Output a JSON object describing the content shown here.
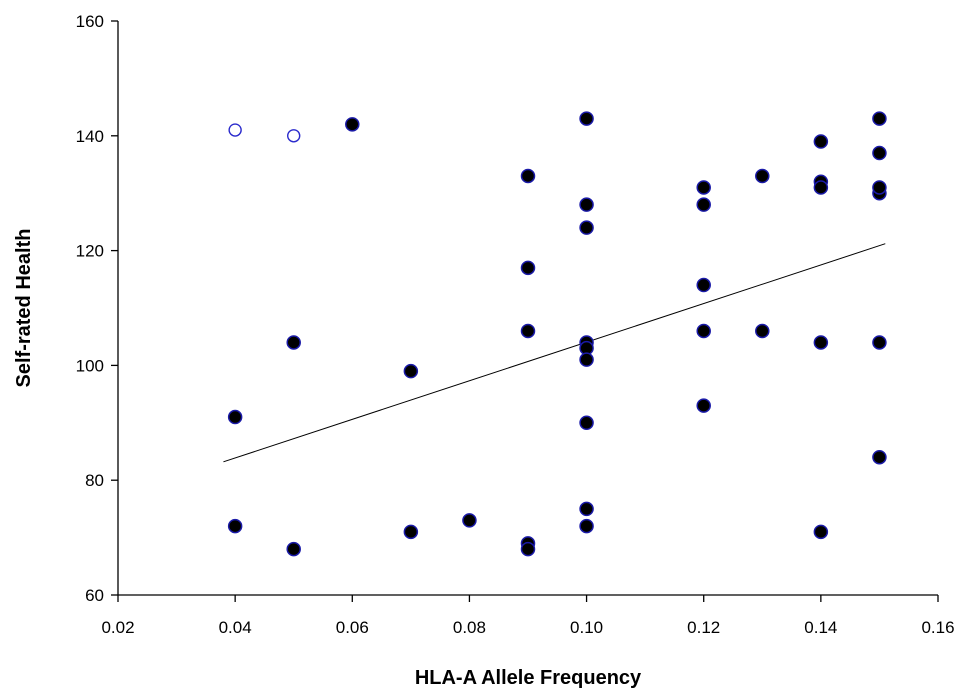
{
  "chart_data": {
    "type": "scatter",
    "xlabel": "HLA-A Allele Frequency",
    "ylabel": "Self-rated Health",
    "xlim": [
      0.02,
      0.16
    ],
    "ylim": [
      60,
      160
    ],
    "x_ticks": [
      "0.02",
      "0.04",
      "0.06",
      "0.08",
      "0.10",
      "0.12",
      "0.14",
      "0.16"
    ],
    "y_ticks": [
      "60",
      "80",
      "100",
      "120",
      "140",
      "160"
    ],
    "grid": false,
    "colors": {
      "marker": "#000000",
      "marker_edge": "#1a1aa8",
      "outlier_edge": "#2a2acc",
      "trendline": "#000000"
    },
    "series": [
      {
        "marker": "filled-circle",
        "x": [
          0.04,
          0.04,
          0.05,
          0.05,
          0.06,
          0.07,
          0.07,
          0.08,
          0.09,
          0.09,
          0.09,
          0.09,
          0.09,
          0.1,
          0.1,
          0.1,
          0.1,
          0.1,
          0.1,
          0.1,
          0.1,
          0.1,
          0.12,
          0.12,
          0.12,
          0.12,
          0.12,
          0.13,
          0.13,
          0.14,
          0.14,
          0.14,
          0.14,
          0.14,
          0.15,
          0.15,
          0.15,
          0.15,
          0.15,
          0.15
        ],
        "y": [
          91,
          72,
          104,
          68,
          142,
          99,
          71,
          73,
          133,
          117,
          106,
          69,
          68,
          128,
          124,
          104,
          103,
          101,
          90,
          75,
          72,
          143,
          131,
          114,
          106,
          93,
          128,
          106,
          133,
          132,
          131,
          104,
          71,
          139,
          137,
          130,
          104,
          84,
          143,
          131
        ]
      },
      {
        "marker": "open-circle",
        "x": [
          0.04,
          0.05
        ],
        "y": [
          141,
          140
        ]
      }
    ],
    "trendline": {
      "x": [
        0.038,
        0.151
      ],
      "y": [
        83.2,
        121.2
      ]
    }
  }
}
